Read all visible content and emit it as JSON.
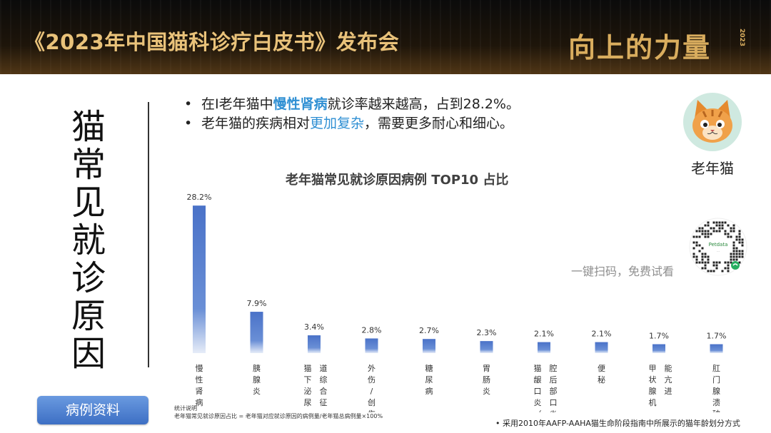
{
  "header": {
    "event_title": "《2023年中国猫科诊疗白皮书》发布会",
    "slogan": "向上的力量",
    "slogan_year": "2023"
  },
  "side_title": "猫常见就诊原因",
  "bullets": [
    {
      "prefix": "在I老年猫中",
      "highlight": "慢性肾病",
      "suffix": "就诊率越来越高，占到28.2%。"
    },
    {
      "prefix": "老年猫的疾病相对",
      "highlight": "更加复杂",
      "suffix": "，需要更多耐心和细心。"
    }
  ],
  "avatar_label": "老年猫",
  "qr_caption": "一键扫码，免费试看",
  "qr_brand": "Petdata",
  "chart_data": {
    "type": "bar",
    "title": "老年猫常见就诊原因病例 TOP10 占比",
    "xlabel": "",
    "ylabel": "",
    "categories": [
      "慢性肾病",
      "胰腺炎",
      "猫下泌尿道综合征",
      "外伤/创伤",
      "糖尿病",
      "胃肠炎",
      "猫龈口炎（猫口腔后部口炎）",
      "便秘",
      "甲状腺机能亢进",
      "肛门腺溃破"
    ],
    "values": [
      28.2,
      7.9,
      3.4,
      2.8,
      2.7,
      2.3,
      2.1,
      2.1,
      1.7,
      1.7
    ],
    "value_labels": [
      "28.2%",
      "7.9%",
      "3.4%",
      "2.8%",
      "2.7%",
      "2.3%",
      "2.1%",
      "2.1%",
      "1.7%",
      "1.7%"
    ],
    "ylim": [
      0,
      30
    ],
    "grid": false,
    "bar_color": "#4a72c8"
  },
  "case_button": "病例资料",
  "note": {
    "heading": "统计说明",
    "text": "老年猫常见就诊原因占比 = 老年猫对应就诊原因的病例量/老年猫总病例量×100%"
  },
  "footnote": "•   采用2010年AAFP-AAHA猫生命阶段指南中所展示的猫年龄划分方式"
}
